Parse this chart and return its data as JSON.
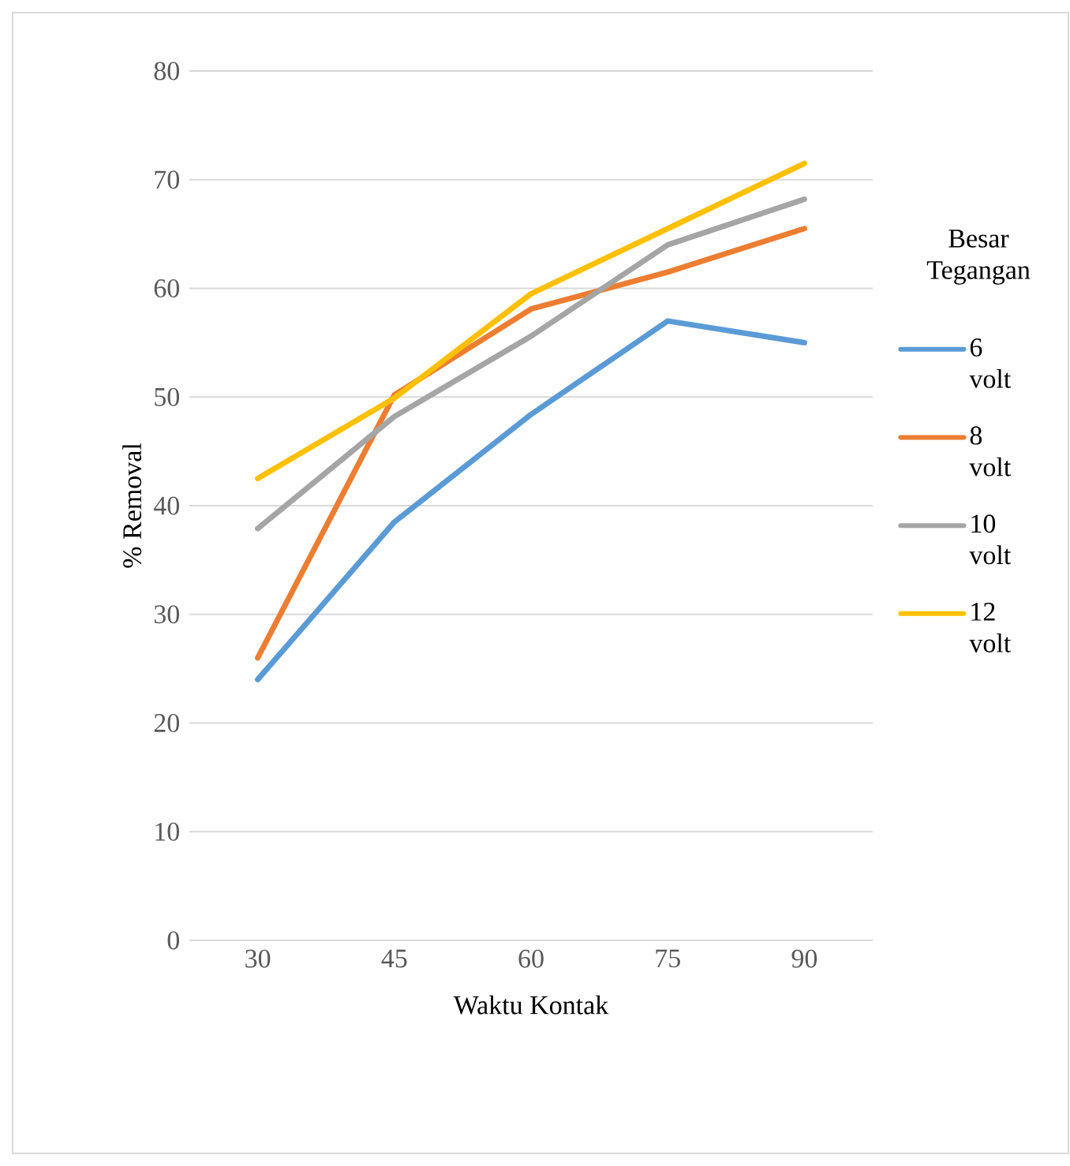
{
  "chart_data": {
    "type": "line",
    "xlabel": "Waktu Kontak",
    "ylabel": "% Removal",
    "legend_title": "Besar Tegangan",
    "categories": [
      "30",
      "45",
      "60",
      "75",
      "90"
    ],
    "ylim": [
      0,
      80
    ],
    "yticks": [
      0,
      10,
      20,
      30,
      40,
      50,
      60,
      70,
      80
    ],
    "grid": "y",
    "legend": "right",
    "marker": "none",
    "line_style": "solid",
    "series": [
      {
        "name": "6 volt",
        "color": "#5b9bd5",
        "values": [
          24,
          38.5,
          48.4,
          57,
          55
        ]
      },
      {
        "name": "8 volt",
        "color": "#ed7d31",
        "values": [
          26,
          50.2,
          58.1,
          61.5,
          65.5
        ]
      },
      {
        "name": "10 volt",
        "color": "#a5a5a5",
        "values": [
          37.9,
          48.2,
          55.6,
          64,
          68.2
        ]
      },
      {
        "name": "12 volt",
        "color": "#ffc000",
        "values": [
          42.5,
          49.9,
          59.5,
          65.5,
          71.5
        ]
      }
    ]
  }
}
